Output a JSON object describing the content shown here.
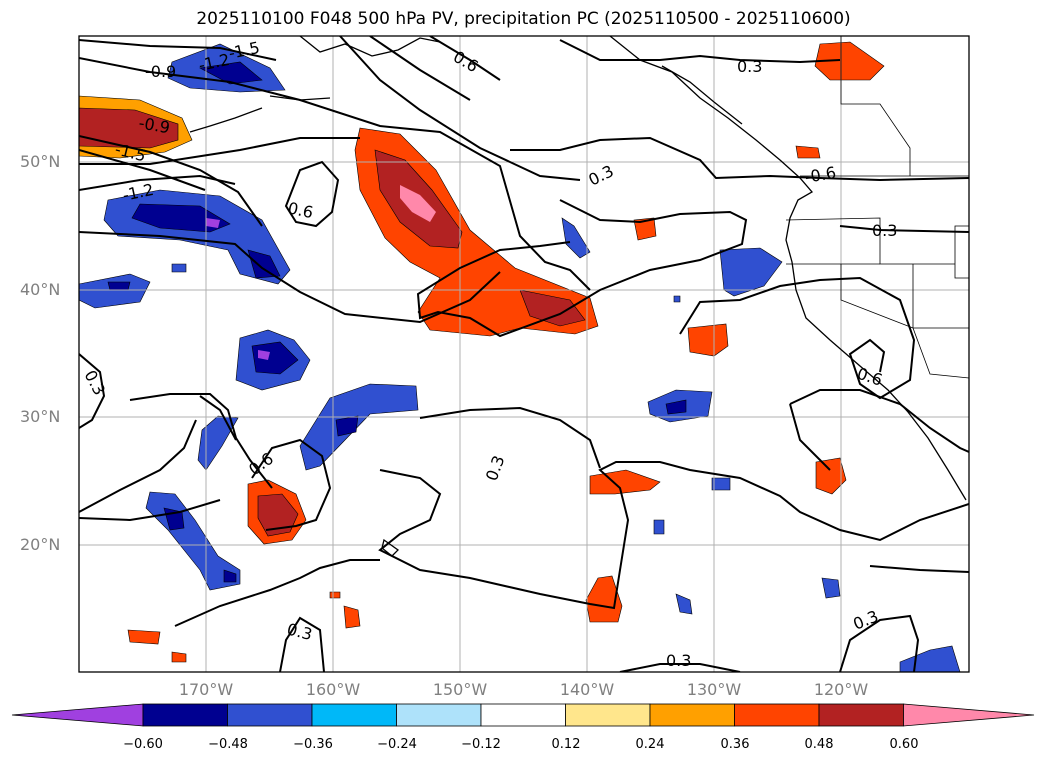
{
  "title": "2025110100 F048 500 hPa PV, precipitation PC (2025110500 - 2025110600)",
  "lat_labels": [
    "50°N",
    "40°N",
    "30°N",
    "20°N"
  ],
  "lon_labels": [
    "170°W",
    "160°W",
    "150°W",
    "140°W",
    "130°W",
    "120°W"
  ],
  "contour_labels": [
    "-1.5",
    "-1.2",
    "-0.9",
    "-0.9",
    "-1.5",
    "-1.2",
    "0.6",
    "0.6",
    "0.3",
    "0.3",
    "-0.6",
    "0.3",
    "0.6",
    "0.3",
    "0.3",
    "0.6",
    "0.3",
    "0.3",
    "0.3"
  ],
  "colorbar": {
    "ticks": [
      "−0.60",
      "−0.48",
      "−0.36",
      "−0.24",
      "−0.12",
      "0.12",
      "0.24",
      "0.36",
      "0.48",
      "0.60"
    ],
    "colors": [
      "#a040e0",
      "#000090",
      "#3050d0",
      "#00b8f8",
      "#aee2fa",
      "#ffffff",
      "#ffe68c",
      "#ffa000",
      "#ff4400",
      "#b22222",
      "#ff88aa"
    ]
  }
}
